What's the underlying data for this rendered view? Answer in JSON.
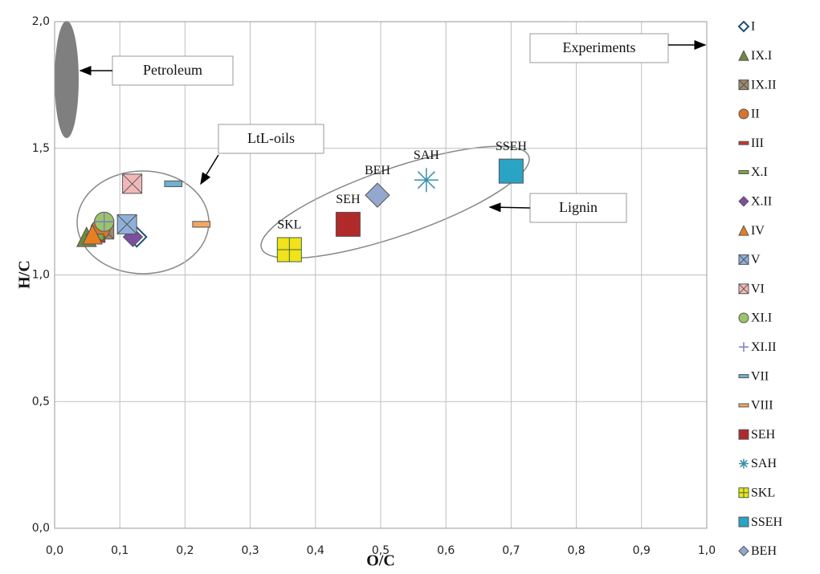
{
  "chart_data": {
    "type": "scatter",
    "x_label": "O/C",
    "y_label": "H/C",
    "xlim": [
      0,
      1
    ],
    "ylim": [
      0,
      2
    ],
    "xticks": [
      {
        "value": 0,
        "label": "0,0"
      },
      {
        "value": 0.1,
        "label": "0,1"
      },
      {
        "value": 0.2,
        "label": "0,2"
      },
      {
        "value": 0.3,
        "label": "0,3"
      },
      {
        "value": 0.4,
        "label": "0,4"
      },
      {
        "value": 0.5,
        "label": "0,5"
      },
      {
        "value": 0.6,
        "label": "0,6"
      },
      {
        "value": 0.7,
        "label": "0,7"
      },
      {
        "value": 0.8,
        "label": "0,8"
      },
      {
        "value": 0.9,
        "label": "0,9"
      },
      {
        "value": 1,
        "label": "1,0"
      }
    ],
    "yticks": [
      {
        "value": 0,
        "label": "0,0"
      },
      {
        "value": 0.5,
        "label": "0,5"
      },
      {
        "value": 1,
        "label": "1,0"
      },
      {
        "value": 1.5,
        "label": "1,5"
      },
      {
        "value": 2,
        "label": "2,0"
      }
    ],
    "grid": true,
    "legend": "right",
    "annotations": [
      "Petroleum",
      "LtL-oils",
      "Experiments",
      "Lignin"
    ],
    "series": [
      {
        "name": "I",
        "color": "#ffffff",
        "marker": "diamond",
        "x": [
          0.126
        ],
        "values": [
          1.15
        ]
      },
      {
        "name": "IX.I",
        "color": "#6e8b3d",
        "marker": "triangle",
        "x": [
          0.049
        ],
        "values": [
          1.15
        ]
      },
      {
        "name": "IX.II",
        "color": "#9c8a6c",
        "marker": "box-x",
        "x": [
          0.076
        ],
        "values": [
          1.18
        ]
      },
      {
        "name": "II",
        "color": "#d9752a",
        "marker": "circle",
        "x": [
          0.07
        ],
        "values": [
          1.18
        ]
      },
      {
        "name": "III",
        "color": "#c0392b",
        "marker": "dash",
        "x": [
          0.064
        ],
        "values": [
          1.14
        ]
      },
      {
        "name": "X.I",
        "color": "#7da743",
        "marker": "dash",
        "x": [
          0.062
        ],
        "values": [
          1.15
        ]
      },
      {
        "name": "X.II",
        "color": "#7b4fa0",
        "marker": "diamond",
        "x": [
          0.12
        ],
        "values": [
          1.15
        ]
      },
      {
        "name": "IV",
        "color": "#e67e22",
        "marker": "triangle",
        "x": [
          0.058
        ],
        "values": [
          1.16
        ]
      },
      {
        "name": "V",
        "color": "#8fb0dc",
        "marker": "box-x",
        "x": [
          0.111
        ],
        "values": [
          1.2
        ]
      },
      {
        "name": "VI",
        "color": "#f2b8b8",
        "marker": "box-x",
        "x": [
          0.119
        ],
        "values": [
          1.36
        ]
      },
      {
        "name": "XI.I",
        "color": "#9cc36a",
        "marker": "circle",
        "x": [
          0.076
        ],
        "values": [
          1.21
        ]
      },
      {
        "name": "XI.II",
        "color": "#7a7fc0",
        "marker": "plus",
        "x": [
          0.076
        ],
        "values": [
          1.21
        ]
      },
      {
        "name": "VII",
        "color": "#6fb1cf",
        "marker": "dash",
        "x": [
          0.182
        ],
        "values": [
          1.36
        ]
      },
      {
        "name": "VIII",
        "color": "#f0a860",
        "marker": "dash",
        "x": [
          0.225
        ],
        "values": [
          1.2
        ]
      },
      {
        "name": "SEH",
        "color": "#b02a2a",
        "marker": "square",
        "x": [
          0.45
        ],
        "values": [
          1.2
        ],
        "show_label": true
      },
      {
        "name": "SAH",
        "color": "#3a8fa8",
        "marker": "star",
        "x": [
          0.57
        ],
        "values": [
          1.375
        ],
        "show_label": true
      },
      {
        "name": "SKL",
        "color": "#f2e21a",
        "marker": "plus-square",
        "x": [
          0.36
        ],
        "values": [
          1.1
        ],
        "show_label": true
      },
      {
        "name": "SSEH",
        "color": "#2aa3c4",
        "marker": "square",
        "x": [
          0.7
        ],
        "values": [
          1.41
        ],
        "show_label": true
      },
      {
        "name": "BEH",
        "color": "#93a8cf",
        "marker": "diamond",
        "x": [
          0.495
        ],
        "values": [
          1.315
        ],
        "show_label": true
      }
    ]
  }
}
